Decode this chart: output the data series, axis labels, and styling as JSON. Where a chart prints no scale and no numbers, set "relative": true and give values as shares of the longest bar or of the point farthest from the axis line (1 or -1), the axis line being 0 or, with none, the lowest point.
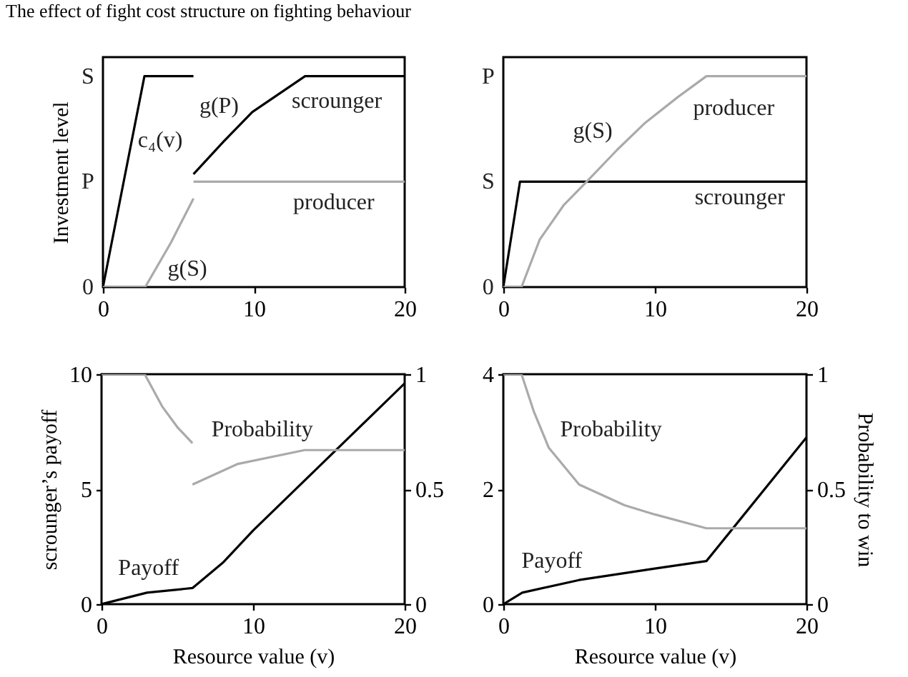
{
  "chart_data": [
    {
      "type": "line",
      "relative": true,
      "title": "The effect of fight cost structure on fighting behaviour",
      "ylabel": "Investment level",
      "xlim": [
        0,
        20
      ],
      "xticks": [
        0,
        10,
        20
      ],
      "series": [
        {
          "color": "#000000",
          "x": [
            0,
            2.75,
            6
          ],
          "values": [
            0,
            1,
            1
          ]
        },
        {
          "color": "#000000",
          "x": [
            6,
            8,
            9.9,
            13.4,
            20
          ],
          "values": [
            0.535,
            0.69,
            0.83,
            1,
            1
          ]
        },
        {
          "color": "#aaaaaa",
          "x": [
            0,
            2.8,
            4.5,
            6
          ],
          "values": [
            0,
            0,
            0.21,
            0.42
          ]
        },
        {
          "color": "#aaaaaa",
          "x": [
            6,
            20
          ],
          "values": [
            0.5,
            0.5
          ]
        }
      ],
      "annotations": [
        "0",
        "P",
        "S",
        "c₄(v)",
        "g(P)",
        "scrounger",
        "producer",
        "g(S)"
      ]
    },
    {
      "type": "line",
      "relative": true,
      "xlim": [
        0,
        20
      ],
      "xticks": [
        0,
        10,
        20
      ],
      "series": [
        {
          "color": "#000000",
          "x": [
            0,
            1.1,
            20
          ],
          "values": [
            0,
            0.5,
            0.5
          ]
        },
        {
          "color": "#aaaaaa",
          "x": [
            0,
            1.2,
            2.4,
            4,
            5.5,
            7.5,
            9.3,
            11.5,
            13.4,
            20
          ],
          "values": [
            0,
            0,
            0.225,
            0.39,
            0.5,
            0.65,
            0.775,
            0.9,
            1,
            1
          ]
        }
      ],
      "annotations": [
        "0",
        "S",
        "P",
        "producer",
        "g(S)",
        "scrounger"
      ]
    },
    {
      "type": "line",
      "xlabel": "Resource value (v)",
      "ylabel": "scrounger’s payoff",
      "xlim": [
        0,
        20
      ],
      "xticks": [
        0,
        10,
        20
      ],
      "ylim": [
        0,
        10
      ],
      "yticks": [
        0,
        5,
        10
      ],
      "y2lim": [
        0,
        1
      ],
      "y2ticks": [
        0,
        0.5,
        1
      ],
      "series": [
        {
          "color": "#000000",
          "x": [
            0,
            3,
            6,
            8,
            10,
            15,
            20
          ],
          "values": [
            0,
            0.5,
            0.7,
            1.8,
            3.2,
            6.4,
            9.6
          ]
        },
        {
          "color": "#aaaaaa",
          "axis": "y2",
          "x": [
            0,
            2.85,
            4,
            5,
            6
          ],
          "values": [
            1,
            1,
            0.86,
            0.77,
            0.7
          ]
        },
        {
          "color": "#aaaaaa",
          "axis": "y2",
          "x": [
            6,
            9,
            13.4,
            20
          ],
          "values": [
            0.52,
            0.61,
            0.67,
            0.67
          ]
        }
      ],
      "annotations": [
        "Probability",
        "Payoff"
      ]
    },
    {
      "type": "line",
      "xlabel": "Resource value (v)",
      "y2label": "Probability to win",
      "xlim": [
        0,
        20
      ],
      "xticks": [
        0,
        10,
        20
      ],
      "ylim": [
        0,
        4
      ],
      "yticks": [
        0,
        2,
        4
      ],
      "y2lim": [
        0,
        1
      ],
      "y2ticks": [
        0,
        0.5,
        1
      ],
      "series": [
        {
          "color": "#000000",
          "x": [
            0,
            1.25,
            5,
            10,
            13.4,
            20
          ],
          "values": [
            0,
            0.2,
            0.42,
            0.62,
            0.75,
            2.9
          ]
        },
        {
          "color": "#aaaaaa",
          "axis": "y2",
          "x": [
            0,
            1.2,
            2,
            3,
            5,
            8,
            10,
            13.4,
            20
          ],
          "values": [
            1,
            1,
            0.84,
            0.68,
            0.52,
            0.43,
            0.39,
            0.33,
            0.33
          ]
        }
      ],
      "annotations": [
        "Probability",
        "Payoff"
      ]
    }
  ]
}
